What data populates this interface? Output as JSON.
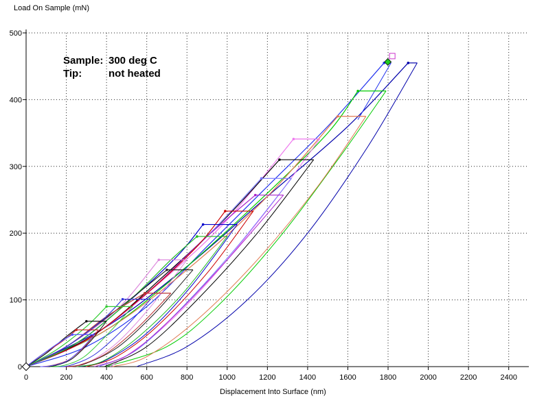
{
  "chart_data": {
    "type": "line",
    "ylabel": "Load On Sample (mN)",
    "xlabel": "Displacement Into Surface (nm)",
    "xlim": [
      0,
      2500
    ],
    "ylim": [
      0,
      500
    ],
    "xticks": [
      0,
      200,
      400,
      600,
      800,
      1000,
      1200,
      1400,
      1600,
      1800,
      2000,
      2200,
      2400
    ],
    "yticks": [
      0,
      100,
      200,
      300,
      400,
      500
    ],
    "grid": "dotted",
    "annotations": [
      {
        "key": "Sample:",
        "value": "300 deg C"
      },
      {
        "key": "Tip:",
        "value": "not heated"
      }
    ],
    "series": [
      {
        "color": "#0000aa",
        "loading": [
          [
            0,
            0
          ],
          [
            400,
            60
          ],
          [
            800,
            150
          ],
          [
            1200,
            255
          ],
          [
            1600,
            360
          ],
          [
            1900,
            455
          ]
        ],
        "hold_max": [
          1900,
          455
        ],
        "hold_end": [
          1945,
          455
        ],
        "unloading": [
          [
            1945,
            455
          ],
          [
            1700,
            330
          ],
          [
            1400,
            200
          ],
          [
            1100,
            100
          ],
          [
            800,
            30
          ],
          [
            550,
            0
          ]
        ]
      },
      {
        "color": "#2233ee",
        "loading": [
          [
            0,
            0
          ],
          [
            300,
            30
          ],
          [
            600,
            90
          ],
          [
            900,
            180
          ],
          [
            1200,
            270
          ],
          [
            1500,
            360
          ],
          [
            1780,
            455
          ]
        ],
        "hold_max": [
          1780,
          455
        ],
        "hold_end": [
          1815,
          455
        ],
        "unloading": [
          [
            1815,
            455
          ],
          [
            1650,
            370
          ]
        ]
      },
      {
        "color": "#00cc00",
        "loading": [
          [
            0,
            0
          ],
          [
            400,
            55
          ],
          [
            800,
            150
          ],
          [
            1200,
            260
          ],
          [
            1500,
            350
          ],
          [
            1650,
            413
          ]
        ],
        "hold_max": [
          1650,
          413
        ],
        "hold_end": [
          1790,
          413
        ],
        "unloading": [
          [
            1790,
            413
          ],
          [
            1550,
            310
          ],
          [
            1250,
            190
          ],
          [
            950,
            90
          ],
          [
            700,
            30
          ],
          [
            400,
            0
          ]
        ]
      },
      {
        "color": "#e07850",
        "loading": [
          [
            0,
            0
          ],
          [
            400,
            55
          ],
          [
            800,
            145
          ],
          [
            1200,
            255
          ],
          [
            1550,
            375
          ]
        ],
        "hold_max": [
          1550,
          375
        ],
        "hold_end": [
          1690,
          375
        ],
        "unloading": [
          [
            1690,
            375
          ],
          [
            1450,
            270
          ],
          [
            1150,
            160
          ],
          [
            850,
            70
          ],
          [
            600,
            15
          ],
          [
            430,
            0
          ]
        ]
      },
      {
        "color": "#ee77ee",
        "loading": [
          [
            0,
            0
          ],
          [
            350,
            50
          ],
          [
            700,
            135
          ],
          [
            1000,
            220
          ],
          [
            1330,
            341
          ]
        ],
        "hold_max": [
          1330,
          341
        ],
        "hold_end": [
          1460,
          341
        ],
        "unloading": [
          [
            1460,
            341
          ],
          [
            1200,
            235
          ],
          [
            900,
            125
          ],
          [
            650,
            50
          ],
          [
            420,
            0
          ]
        ]
      },
      {
        "color": "#000000",
        "loading": [
          [
            0,
            0
          ],
          [
            350,
            50
          ],
          [
            700,
            140
          ],
          [
            1000,
            225
          ],
          [
            1260,
            310
          ]
        ],
        "hold_max": [
          1260,
          310
        ],
        "hold_end": [
          1430,
          310
        ],
        "unloading": [
          [
            1430,
            310
          ],
          [
            1150,
            200
          ],
          [
            850,
            100
          ],
          [
            600,
            30
          ],
          [
            390,
            0
          ]
        ]
      },
      {
        "color": "#7777ff",
        "loading": [
          [
            0,
            0
          ],
          [
            300,
            40
          ],
          [
            600,
            110
          ],
          [
            900,
            195
          ],
          [
            1170,
            282
          ]
        ],
        "hold_max": [
          1170,
          282
        ],
        "hold_end": [
          1320,
          282
        ],
        "unloading": [
          [
            1320,
            282
          ],
          [
            1050,
            180
          ],
          [
            780,
            90
          ],
          [
            550,
            25
          ],
          [
            360,
            0
          ]
        ]
      },
      {
        "color": "#aa22cc",
        "loading": [
          [
            0,
            0
          ],
          [
            300,
            40
          ],
          [
            600,
            110
          ],
          [
            900,
            195
          ],
          [
            1140,
            257
          ]
        ],
        "hold_max": [
          1140,
          257
        ],
        "hold_end": [
          1280,
          257
        ],
        "unloading": [
          [
            1280,
            257
          ],
          [
            1000,
            160
          ],
          [
            750,
            80
          ],
          [
            520,
            20
          ],
          [
            340,
            0
          ]
        ]
      },
      {
        "color": "#cc0000",
        "loading": [
          [
            0,
            0
          ],
          [
            300,
            40
          ],
          [
            600,
            110
          ],
          [
            850,
            180
          ],
          [
            990,
            233
          ]
        ],
        "hold_max": [
          990,
          233
        ],
        "hold_end": [
          1130,
          233
        ],
        "unloading": [
          [
            1130,
            233
          ],
          [
            900,
            140
          ],
          [
            650,
            60
          ],
          [
            450,
            15
          ],
          [
            300,
            0
          ]
        ]
      },
      {
        "color": "#0000cc",
        "loading": [
          [
            0,
            0
          ],
          [
            250,
            35
          ],
          [
            500,
            95
          ],
          [
            750,
            165
          ],
          [
            880,
            213
          ]
        ],
        "hold_max": [
          880,
          213
        ],
        "hold_end": [
          1050,
          213
        ],
        "unloading": [
          [
            1050,
            213
          ],
          [
            820,
            120
          ],
          [
            600,
            50
          ],
          [
            400,
            10
          ],
          [
            270,
            0
          ]
        ]
      },
      {
        "color": "#22bb22",
        "loading": [
          [
            0,
            0
          ],
          [
            250,
            35
          ],
          [
            500,
            95
          ],
          [
            720,
            160
          ],
          [
            850,
            195
          ]
        ],
        "hold_max": [
          850,
          195
        ],
        "hold_end": [
          1000,
          195
        ],
        "unloading": [
          [
            1000,
            195
          ],
          [
            780,
            110
          ],
          [
            560,
            45
          ],
          [
            380,
            8
          ],
          [
            250,
            0
          ]
        ]
      },
      {
        "color": "#dd88dd",
        "loading": [
          [
            0,
            0
          ],
          [
            200,
            30
          ],
          [
            450,
            85
          ],
          [
            660,
            160
          ]
        ],
        "hold_max": [
          660,
          160
        ],
        "hold_end": [
          800,
          160
        ],
        "unloading": [
          [
            800,
            160
          ],
          [
            620,
            90
          ],
          [
            450,
            35
          ],
          [
            300,
            5
          ],
          [
            210,
            0
          ]
        ]
      },
      {
        "color": "#222222",
        "loading": [
          [
            0,
            0
          ],
          [
            200,
            30
          ],
          [
            450,
            85
          ],
          [
            700,
            145
          ]
        ],
        "hold_max": [
          700,
          145
        ],
        "hold_end": [
          830,
          145
        ],
        "unloading": [
          [
            830,
            145
          ],
          [
            640,
            80
          ],
          [
            460,
            30
          ],
          [
            300,
            5
          ],
          [
            200,
            0
          ]
        ]
      },
      {
        "color": "#bb3333",
        "loading": [
          [
            0,
            0
          ],
          [
            200,
            30
          ],
          [
            400,
            75
          ],
          [
            590,
            110
          ]
        ],
        "hold_max": [
          590,
          110
        ],
        "hold_end": [
          720,
          110
        ],
        "unloading": [
          [
            720,
            110
          ],
          [
            560,
            60
          ],
          [
            400,
            20
          ],
          [
            260,
            2
          ],
          [
            180,
            0
          ]
        ]
      },
      {
        "color": "#3333dd",
        "loading": [
          [
            0,
            0
          ],
          [
            200,
            30
          ],
          [
            380,
            70
          ],
          [
            480,
            101
          ]
        ],
        "hold_max": [
          480,
          101
        ],
        "hold_end": [
          620,
          101
        ],
        "unloading": [
          [
            620,
            101
          ],
          [
            480,
            55
          ],
          [
            340,
            18
          ],
          [
            220,
            2
          ],
          [
            150,
            0
          ]
        ]
      },
      {
        "color": "#33cc33",
        "loading": [
          [
            0,
            0
          ],
          [
            150,
            25
          ],
          [
            300,
            60
          ],
          [
            400,
            90
          ]
        ],
        "hold_max": [
          400,
          90
        ],
        "hold_end": [
          530,
          90
        ],
        "unloading": [
          [
            530,
            90
          ],
          [
            410,
            50
          ],
          [
            290,
            15
          ],
          [
            190,
            2
          ],
          [
            120,
            0
          ]
        ]
      },
      {
        "color": "#111111",
        "loading": [
          [
            0,
            0
          ],
          [
            100,
            20
          ],
          [
            200,
            45
          ],
          [
            300,
            68
          ]
        ],
        "hold_max": [
          300,
          68
        ],
        "hold_end": [
          400,
          68
        ],
        "unloading": [
          [
            400,
            68
          ],
          [
            320,
            38
          ],
          [
            230,
            12
          ],
          [
            150,
            2
          ],
          [
            100,
            0
          ]
        ]
      },
      {
        "color": "#cc2222",
        "loading": [
          [
            0,
            0
          ],
          [
            80,
            18
          ],
          [
            180,
            38
          ],
          [
            250,
            55
          ]
        ],
        "hold_max": [
          250,
          55
        ],
        "hold_end": [
          360,
          55
        ],
        "unloading": [
          [
            360,
            55
          ],
          [
            290,
            30
          ],
          [
            210,
            10
          ],
          [
            130,
            2
          ],
          [
            80,
            0
          ]
        ]
      },
      {
        "color": "#5555ff",
        "loading": [
          [
            0,
            0
          ],
          [
            80,
            18
          ],
          [
            160,
            35
          ],
          [
            230,
            48
          ]
        ],
        "hold_max": [
          230,
          48
        ],
        "hold_end": [
          340,
          48
        ],
        "unloading": [
          [
            340,
            48
          ],
          [
            270,
            25
          ],
          [
            200,
            8
          ],
          [
            120,
            1
          ],
          [
            70,
            0
          ]
        ]
      }
    ]
  }
}
